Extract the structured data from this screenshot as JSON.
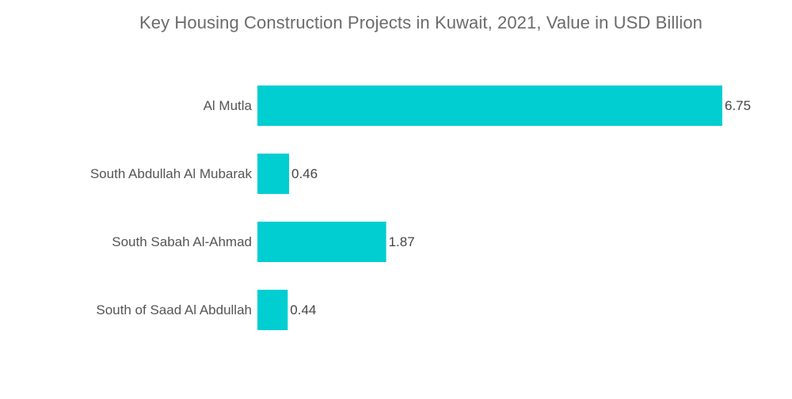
{
  "chart_data": {
    "type": "bar",
    "orientation": "horizontal",
    "title": "Key Housing Construction Projects in Kuwait, 2021, Value in USD Billion",
    "categories": [
      "Al Mutla",
      "South Abdullah Al Mubarak",
      "South Sabah Al-Ahmad",
      "South of Saad Al Abdullah"
    ],
    "values": [
      6.75,
      0.46,
      1.87,
      0.44
    ],
    "value_labels": [
      "6.75",
      "0.46",
      "1.87",
      "0.44"
    ],
    "xlim": [
      0,
      6.75
    ],
    "grid": false,
    "legend": "none",
    "bar_color": "#00CED1"
  }
}
